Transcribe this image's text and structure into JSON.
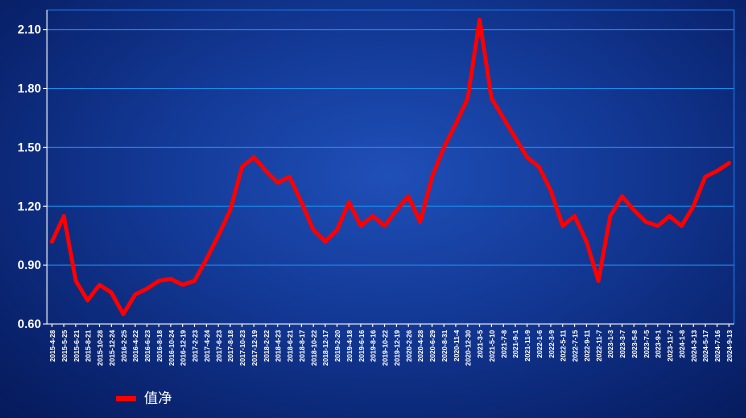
{
  "chart_data": {
    "type": "line",
    "title": "",
    "xlabel": "",
    "ylabel": "",
    "ylim": [
      0.6,
      2.2
    ],
    "yticks": [
      "0.60",
      "0.90",
      "1.20",
      "1.50",
      "1.80",
      "2.10"
    ],
    "grid": true,
    "legend_position": "bottom-left",
    "series": [
      {
        "name": "值净",
        "color": "#ff0000",
        "x": [
          "2015-4-28",
          "2015-5-25",
          "2015-6-21",
          "2015-8-21",
          "2015-10-28",
          "2015-12-24",
          "2016-2-25",
          "2016-4-22",
          "2016-6-23",
          "2016-8-18",
          "2016-10-24",
          "2016-12-19",
          "2017-2-23",
          "2017-4-24",
          "2017-6-23",
          "2017-8-18",
          "2017-10-23",
          "2017-12-19",
          "2018-2-22",
          "2018-4-23",
          "2018-6-21",
          "2018-8-17",
          "2018-10-22",
          "2018-12-17",
          "2019-2-20",
          "2019-4-18",
          "2019-6-16",
          "2019-8-16",
          "2019-10-22",
          "2019-12-19",
          "2020-2-26",
          "2020-4-28",
          "2020-6-29",
          "2020-8-31",
          "2020-11-4",
          "2020-12-30",
          "2021-3-5",
          "2021-5-10",
          "2021-7-8",
          "2021-9-1",
          "2021-11-9",
          "2022-1-6",
          "2022-3-9",
          "2022-5-11",
          "2022-7-15",
          "2022-9-11",
          "2022-11-7",
          "2023-1-3",
          "2023-3-7",
          "2023-5-8",
          "2023-7-5",
          "2023-9-1",
          "2023-11-7",
          "2024-1-8",
          "2024-3-13",
          "2024-5-17",
          "2024-7-16",
          "2024-9-13"
        ],
        "values": [
          1.02,
          1.15,
          0.82,
          0.72,
          0.8,
          0.76,
          0.65,
          0.75,
          0.78,
          0.82,
          0.83,
          0.8,
          0.82,
          0.93,
          1.05,
          1.18,
          1.4,
          1.45,
          1.38,
          1.32,
          1.35,
          1.22,
          1.08,
          1.02,
          1.08,
          1.22,
          1.1,
          1.15,
          1.1,
          1.18,
          1.25,
          1.12,
          1.35,
          1.5,
          1.62,
          1.75,
          2.15,
          1.75,
          1.65,
          1.55,
          1.45,
          1.4,
          1.28,
          1.1,
          1.15,
          1.02,
          0.82,
          1.15,
          1.25,
          1.18,
          1.12,
          1.1,
          1.15,
          1.1,
          1.2,
          1.35,
          1.38,
          1.42
        ]
      }
    ]
  },
  "legend": {
    "label": "值净"
  }
}
